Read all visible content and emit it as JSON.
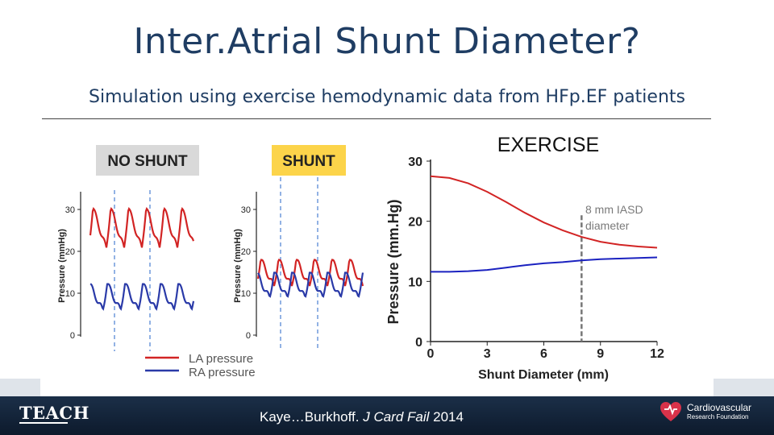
{
  "slide": {
    "title": "Inter.Atrial Shunt Diameter?",
    "subtitle": "Simulation using exercise hemodynamic data from HFp.EF patients"
  },
  "left_figure": {
    "labels": {
      "no_shunt": "NO SHUNT",
      "shunt": "SHUNT"
    },
    "y_axis_label": "Pressure (mmHg)",
    "y_ticks": [
      "0",
      "10",
      "20",
      "30"
    ],
    "legend": [
      {
        "label": "LA pressure",
        "color": "#d22424"
      },
      {
        "label": "RA pressure",
        "color": "#2a3aa8"
      }
    ],
    "no_shunt_label_bg": "#d9d9d9",
    "shunt_label_bg": "#fcd44a"
  },
  "chart_data": {
    "type": "line",
    "title": "EXERCISE",
    "xlabel": "Shunt Diameter (mm)",
    "ylabel": "Pressure (mm.Hg)",
    "xlim": [
      0,
      12
    ],
    "ylim": [
      0,
      30
    ],
    "x_ticks": [
      "0",
      "3",
      "6",
      "9",
      "12"
    ],
    "y_ticks": [
      "0",
      "10",
      "20",
      "30"
    ],
    "series": [
      {
        "color": "#d22424",
        "x": [
          0,
          1,
          2,
          3,
          4,
          5,
          6,
          7,
          8,
          9,
          10,
          11,
          12
        ],
        "y": [
          27.5,
          27.2,
          26.3,
          24.9,
          23.2,
          21.4,
          19.8,
          18.5,
          17.4,
          16.6,
          16.1,
          15.8,
          15.6
        ]
      },
      {
        "color": "#1b22c0",
        "x": [
          0,
          1,
          2,
          3,
          4,
          5,
          6,
          7,
          8,
          9,
          10,
          11,
          12
        ],
        "y": [
          11.6,
          11.6,
          11.7,
          11.9,
          12.3,
          12.7,
          13.0,
          13.2,
          13.5,
          13.7,
          13.8,
          13.9,
          14.0
        ]
      }
    ],
    "annotation": {
      "text_line1": "8 mm IASD",
      "text_line2": "diameter",
      "x": 8
    }
  },
  "footer": {
    "logo_text": "TEACH",
    "citation_authors": "Kaye…Burkhoff.",
    "citation_journal": "J Card Fail",
    "citation_year": "2014",
    "org_name_line1": "Cardiovascular",
    "org_name_line2": "Research Foundation"
  }
}
